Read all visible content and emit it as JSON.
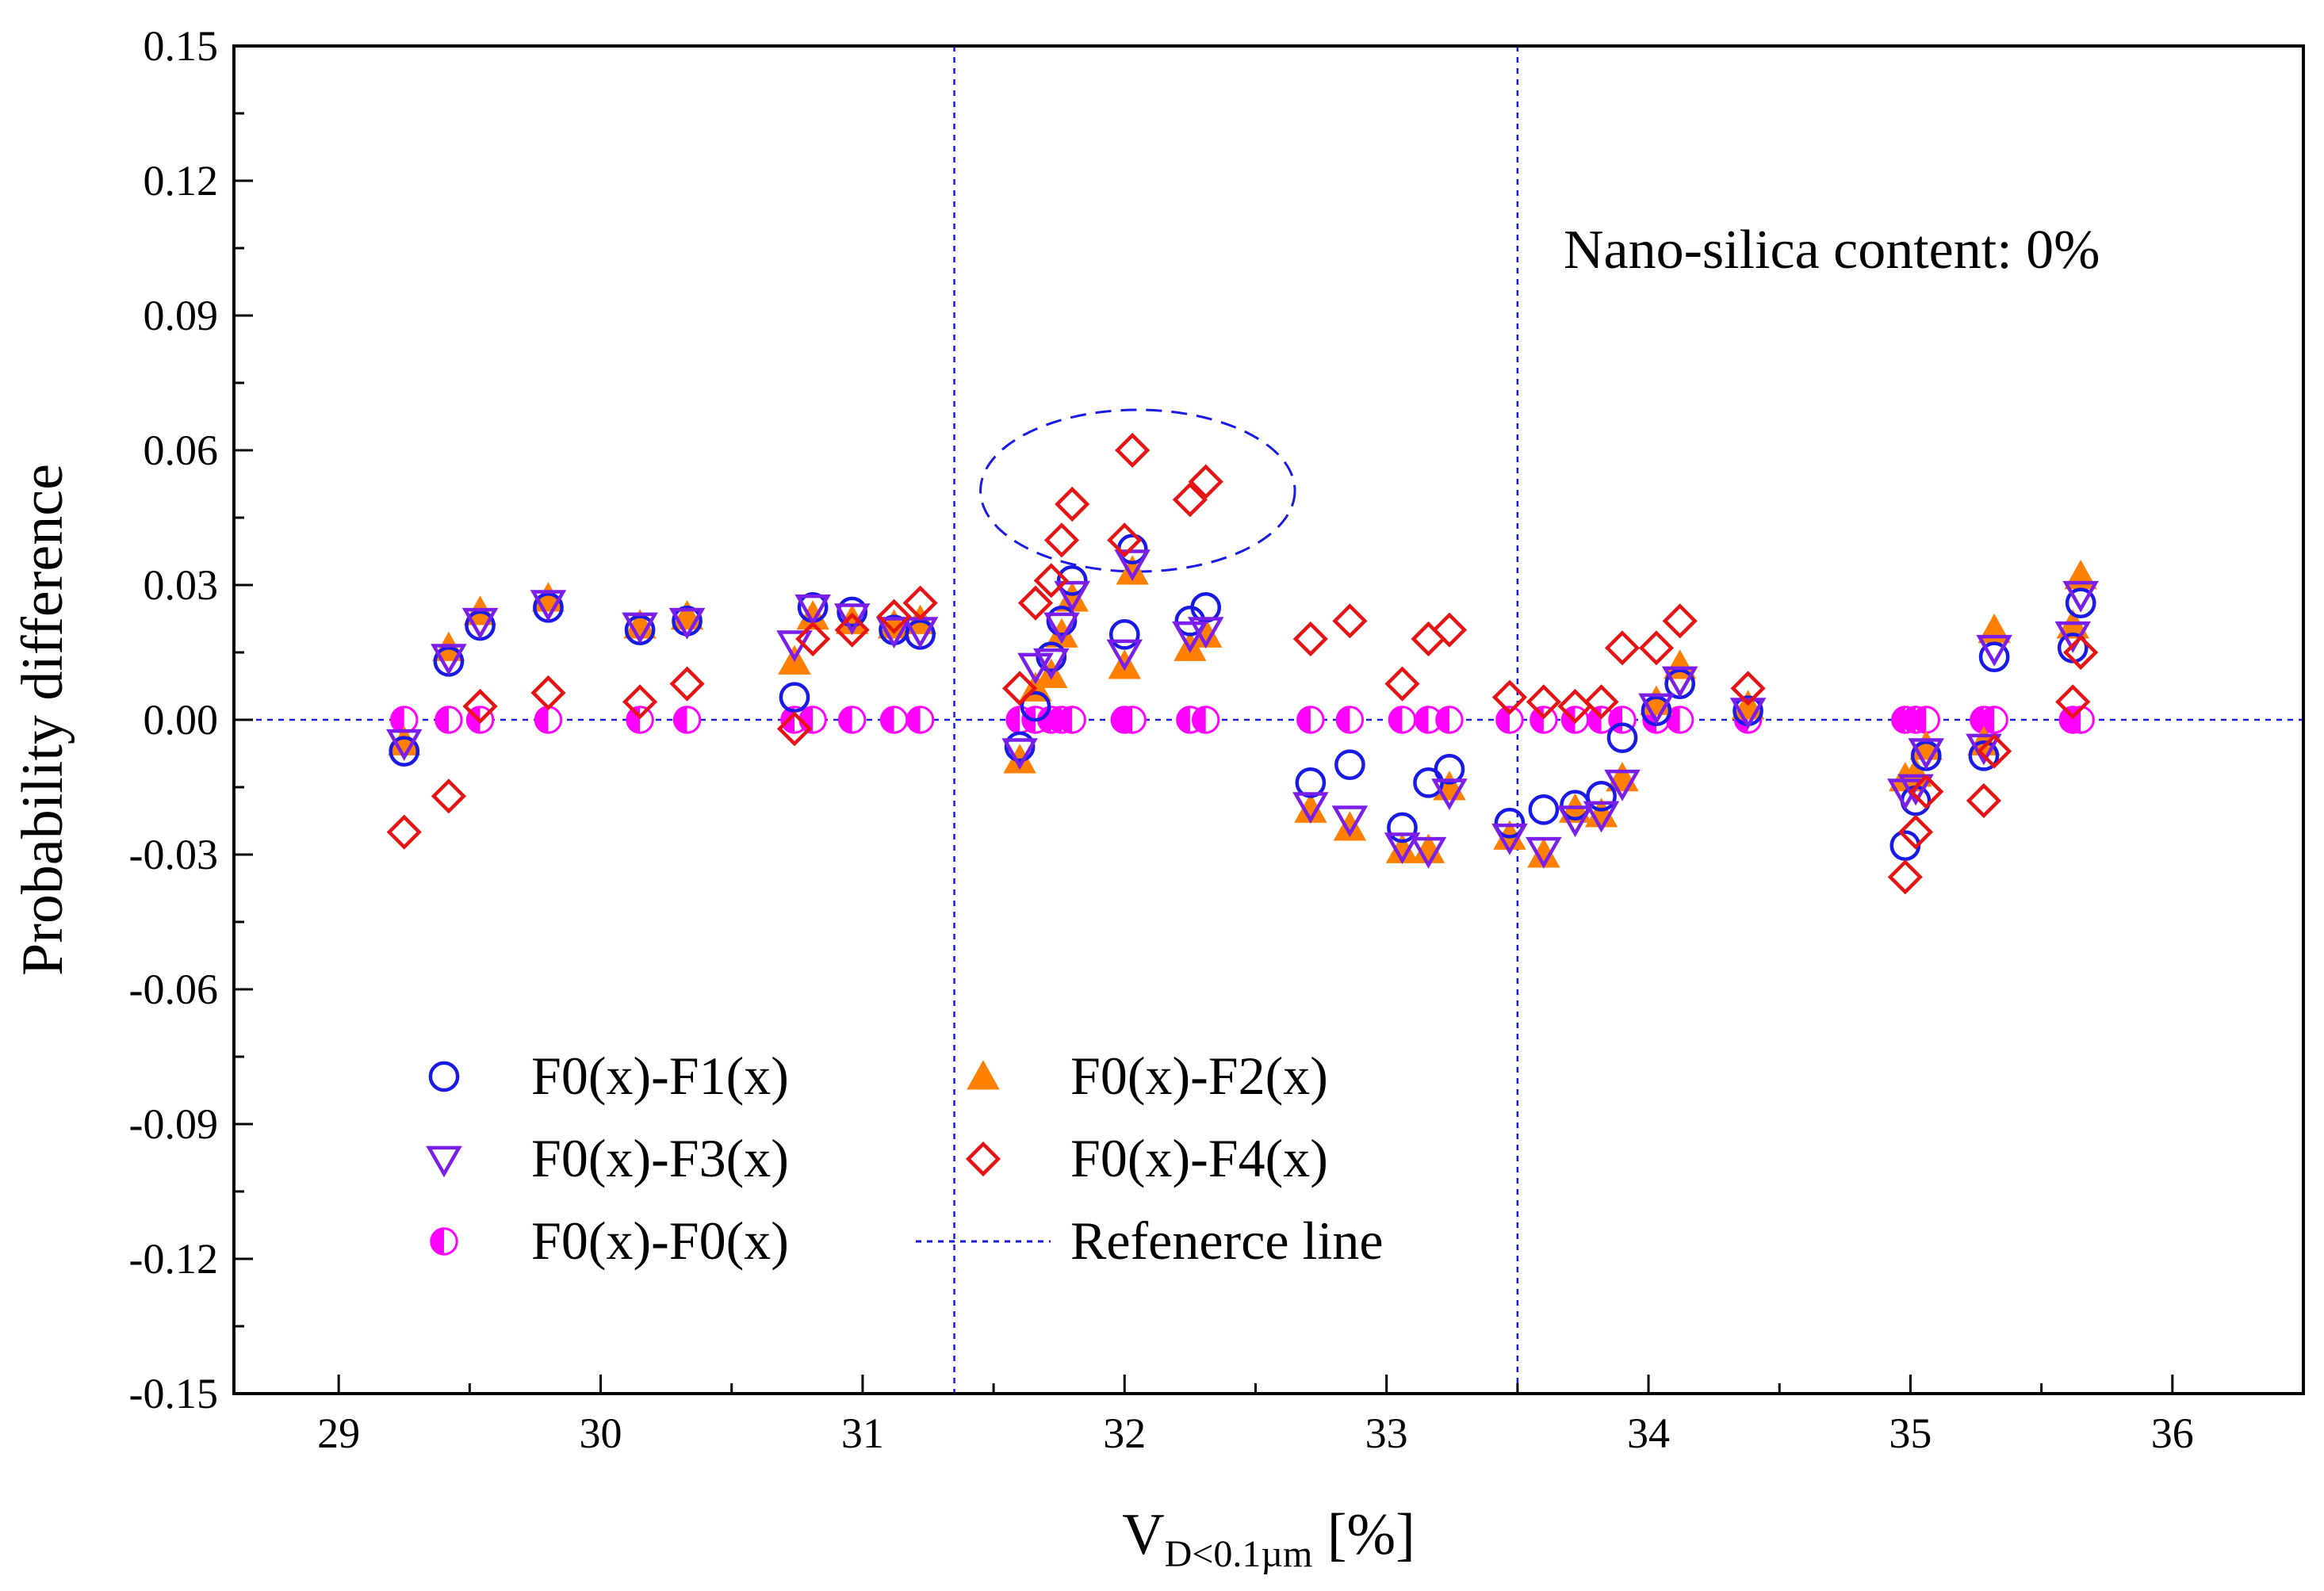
{
  "chart_data": {
    "type": "scatter",
    "xlabel_main": "V",
    "xlabel_sub": "D<0.1µm",
    "xlabel_unit": " [%]",
    "ylabel": "Probability difference",
    "annotation": "Nano-silica content: 0%",
    "xlim": [
      28.6,
      36.5
    ],
    "ylim": [
      -0.15,
      0.15
    ],
    "xticks": [
      29,
      30,
      31,
      32,
      33,
      34,
      35,
      36
    ],
    "xtick_labels": [
      "29",
      "30",
      "31",
      "32",
      "33",
      "34",
      "35",
      "36"
    ],
    "yticks": [
      0.15,
      0.12,
      0.09,
      0.06,
      0.03,
      0.0,
      -0.03,
      -0.06,
      -0.09,
      -0.12,
      -0.15
    ],
    "ytick_labels": [
      "0.15",
      "0.12",
      "0.09",
      "0.06",
      "0.03",
      "0.00",
      "-0.03",
      "-0.06",
      "-0.09",
      "-0.12",
      "-0.15"
    ],
    "reference_lines": {
      "vertical_x": [
        31.35,
        33.5
      ],
      "horizontal_y": [
        0.0
      ]
    },
    "highlight_ellipse": {
      "cx": 32.05,
      "cy": 0.051,
      "rx": 0.6,
      "ry": 0.018
    },
    "x": [
      29.25,
      29.42,
      29.54,
      29.8,
      30.15,
      30.33,
      30.74,
      30.81,
      30.96,
      31.12,
      31.22,
      31.6,
      31.66,
      31.72,
      31.76,
      31.8,
      32.0,
      32.03,
      32.25,
      32.31,
      32.71,
      32.86,
      33.06,
      33.16,
      33.24,
      33.47,
      33.6,
      33.72,
      33.82,
      33.9,
      34.03,
      34.12,
      34.38,
      34.98,
      35.02,
      35.06,
      35.28,
      35.32,
      35.62,
      35.65
    ],
    "series": [
      {
        "name": "F0(x)-F1(x)",
        "color": "#1a1ae6",
        "marker": "circle",
        "values": [
          -0.007,
          0.013,
          0.021,
          0.025,
          0.02,
          0.022,
          0.005,
          0.025,
          0.024,
          0.02,
          0.019,
          -0.006,
          0.003,
          0.014,
          0.022,
          0.031,
          0.019,
          0.038,
          0.022,
          0.025,
          -0.014,
          -0.01,
          -0.024,
          -0.014,
          -0.011,
          -0.023,
          -0.02,
          -0.019,
          -0.017,
          -0.004,
          0.002,
          0.008,
          0.002,
          -0.028,
          -0.018,
          -0.008,
          -0.008,
          0.014,
          0.016,
          0.026
        ]
      },
      {
        "name": "F0(x)-F2(x)",
        "color": "#ff8000",
        "marker": "triangle-up",
        "values": [
          -0.005,
          0.016,
          0.024,
          0.027,
          0.021,
          0.023,
          0.013,
          0.023,
          0.022,
          0.021,
          0.022,
          -0.009,
          0.007,
          0.01,
          0.019,
          0.027,
          0.012,
          0.033,
          0.016,
          0.019,
          -0.02,
          -0.024,
          -0.029,
          -0.029,
          -0.015,
          -0.026,
          -0.03,
          -0.02,
          -0.021,
          -0.013,
          0.004,
          0.012,
          0.003,
          -0.013,
          -0.012,
          -0.006,
          -0.005,
          0.02,
          0.021,
          0.032
        ]
      },
      {
        "name": "F0(x)-F3(x)",
        "color": "#7b1fe8",
        "marker": "triangle-down",
        "values": [
          -0.005,
          0.014,
          0.022,
          0.026,
          0.021,
          0.022,
          0.017,
          0.025,
          0.023,
          0.02,
          0.02,
          -0.007,
          0.012,
          0.013,
          0.021,
          0.028,
          0.015,
          0.035,
          0.019,
          0.02,
          -0.019,
          -0.022,
          -0.028,
          -0.029,
          -0.016,
          -0.026,
          -0.029,
          -0.022,
          -0.021,
          -0.014,
          0.003,
          0.009,
          0.002,
          -0.016,
          -0.015,
          -0.007,
          -0.006,
          0.016,
          0.019,
          0.028
        ]
      },
      {
        "name": "F0(x)-F4(x)",
        "color": "#e61414",
        "marker": "diamond",
        "values": [
          -0.025,
          -0.017,
          0.003,
          0.006,
          0.004,
          0.008,
          -0.002,
          0.018,
          0.02,
          0.023,
          0.026,
          0.007,
          0.026,
          0.031,
          0.04,
          0.048,
          0.04,
          0.06,
          0.049,
          0.053,
          0.018,
          0.022,
          0.008,
          0.018,
          0.02,
          0.005,
          0.004,
          0.003,
          0.004,
          0.016,
          0.016,
          0.022,
          0.007,
          -0.035,
          -0.025,
          -0.016,
          -0.018,
          -0.007,
          0.004,
          0.015
        ]
      },
      {
        "name": "F0(x)-F0(x)",
        "color": "#ff00ff",
        "marker": "half-circle",
        "values": [
          0,
          0,
          0,
          0,
          0,
          0,
          0,
          0,
          0,
          0,
          0,
          0,
          0,
          0,
          0,
          0,
          0,
          0,
          0,
          0,
          0,
          0,
          0,
          0,
          0,
          0,
          0,
          0,
          0,
          0,
          0,
          0,
          0,
          0,
          0,
          0,
          0,
          0,
          0,
          0
        ]
      }
    ],
    "legend": {
      "position": "bottom-left",
      "entries": [
        {
          "label": "F0(x)-F1(x)",
          "marker": "circle",
          "color": "#1a1ae6"
        },
        {
          "label": "F0(x)-F2(x)",
          "marker": "triangle-up",
          "color": "#ff8000"
        },
        {
          "label": "F0(x)-F3(x)",
          "marker": "triangle-down",
          "color": "#7b1fe8"
        },
        {
          "label": "F0(x)-F4(x)",
          "marker": "diamond",
          "color": "#e61414"
        },
        {
          "label": "F0(x)-F0(x)",
          "marker": "half-circle",
          "color": "#ff00ff"
        },
        {
          "label": "Refenerce line",
          "marker": "dotted-line",
          "color": "#1a1ae6"
        }
      ]
    }
  }
}
